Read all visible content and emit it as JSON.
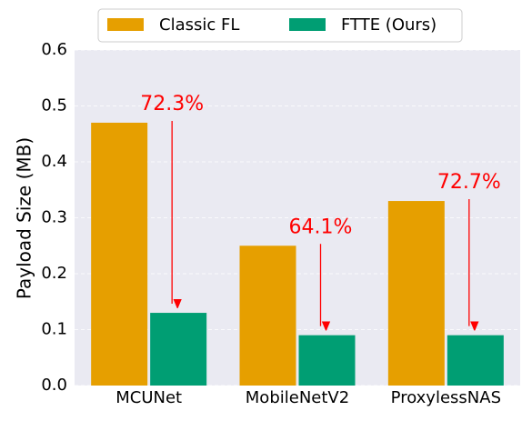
{
  "chart_data": {
    "type": "bar",
    "y_label": "Payload Size (MB)",
    "categories": [
      "MCUNet",
      "MobileNetV2",
      "ProxylessNAS"
    ],
    "series": [
      {
        "name": "Classic FL",
        "color": "#e69f00",
        "values": [
          0.47,
          0.25,
          0.33
        ]
      },
      {
        "name": "FTTE (Ours)",
        "color": "#009e73",
        "values": [
          0.13,
          0.09,
          0.09
        ]
      }
    ],
    "ylim": [
      0,
      0.6
    ],
    "yticks": [
      {
        "value": 0,
        "label": "0.0"
      },
      0.1,
      0.2,
      0.3,
      0.4,
      0.5,
      0.6
    ],
    "grid": true,
    "annotations": [
      {
        "text": "72.3%",
        "color": "#ff0000"
      },
      {
        "text": "64.1%",
        "color": "#ff0000"
      },
      {
        "text": "72.7%",
        "color": "#ff0000"
      }
    ]
  }
}
